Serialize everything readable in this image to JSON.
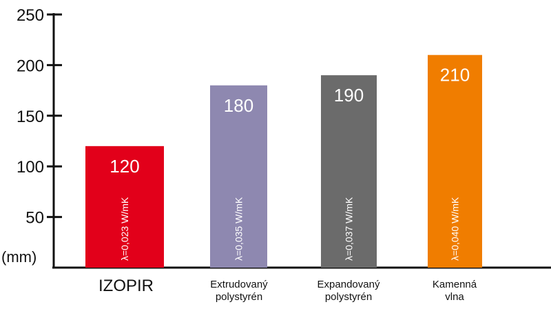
{
  "chart_data": {
    "type": "bar",
    "ylabel": "(mm)",
    "ylim": [
      0,
      250
    ],
    "yticks": [
      50,
      100,
      150,
      200,
      250
    ],
    "grid": false,
    "categories": [
      [
        "IZOPIR"
      ],
      [
        "Extrudovaný",
        "polystyrén"
      ],
      [
        "Expandovaný",
        "polystyrén"
      ],
      [
        "Kamenná",
        "vlna"
      ]
    ],
    "values": [
      120,
      180,
      190,
      210
    ],
    "value_labels": [
      "120",
      "180",
      "190",
      "210"
    ],
    "bar_annotations": [
      "λ=0,023 W/mK",
      "λ=0,035 W/mK",
      "λ=0,037 W/mK",
      "λ=0,040 W/mK"
    ],
    "colors": [
      "#e2001a",
      "#8e88b0",
      "#6b6b6b",
      "#f07d00"
    ]
  }
}
